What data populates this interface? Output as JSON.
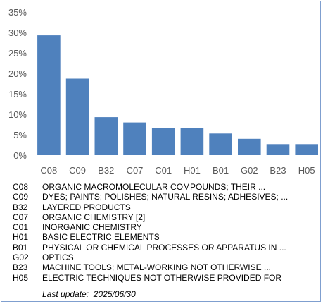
{
  "chart_data": {
    "type": "bar",
    "categories": [
      "C08",
      "C09",
      "B32",
      "C07",
      "C01",
      "H01",
      "B01",
      "G02",
      "B23",
      "H05"
    ],
    "values": [
      29.3,
      18.7,
      9.3,
      8.0,
      6.7,
      6.7,
      5.3,
      4.0,
      2.7,
      2.7
    ],
    "ylim": [
      0,
      35
    ],
    "yticks": [
      "0%",
      "5%",
      "10%",
      "15%",
      "20%",
      "25%",
      "30%",
      "35%"
    ],
    "ytick_values": [
      0,
      5,
      10,
      15,
      20,
      25,
      30,
      35
    ],
    "bar_color": "#4f81bd",
    "grid": false,
    "title": "",
    "xlabel": "",
    "ylabel": ""
  },
  "legend": [
    {
      "code": "C08",
      "desc": "ORGANIC MACROMOLECULAR COMPOUNDS; THEIR ..."
    },
    {
      "code": "C09",
      "desc": "DYES; PAINTS; POLISHES; NATURAL RESINS; ADHESIVES; ..."
    },
    {
      "code": "B32",
      "desc": "LAYERED PRODUCTS"
    },
    {
      "code": "C07",
      "desc": "ORGANIC CHEMISTRY [2]"
    },
    {
      "code": "C01",
      "desc": "INORGANIC CHEMISTRY"
    },
    {
      "code": "H01",
      "desc": "BASIC ELECTRIC ELEMENTS"
    },
    {
      "code": "B01",
      "desc": "PHYSICAL OR CHEMICAL PROCESSES OR APPARATUS IN ..."
    },
    {
      "code": "G02",
      "desc": "OPTICS"
    },
    {
      "code": "B23",
      "desc": "MACHINE TOOLS; METAL-WORKING NOT OTHERWISE ..."
    },
    {
      "code": "H05",
      "desc": "ELECTRIC TECHNIQUES NOT OTHERWISE PROVIDED FOR"
    }
  ],
  "last_update": "Last update:  2025/06/30",
  "colors": {
    "border": "#7f9fcf",
    "tick_text": "#595959"
  }
}
